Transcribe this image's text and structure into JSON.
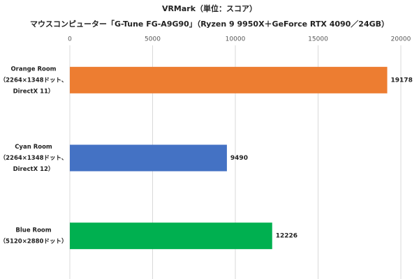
{
  "chart_data": {
    "type": "bar",
    "orientation": "horizontal",
    "title": "VRMark（単位：スコア）",
    "subtitle": "マウスコンピューター「G-Tune FG-A9G90」（Ryzen 9 9950X＋GeForce RTX 4090／24GB）",
    "categories": [
      [
        "Orange Room",
        "（2264×1348ドット、",
        "DirectX 11）"
      ],
      [
        "Cyan Room",
        "（2264×1348ドット、",
        "DirectX 12）"
      ],
      [
        "Blue Room",
        "（5120×2880ドット）"
      ]
    ],
    "values": [
      19178,
      9490,
      12226
    ],
    "colors": [
      "#ed7d31",
      "#4472c4",
      "#00b050"
    ],
    "xlim": [
      0,
      20000
    ],
    "xticks": [
      0,
      5000,
      10000,
      15000,
      20000
    ],
    "grid": true
  }
}
